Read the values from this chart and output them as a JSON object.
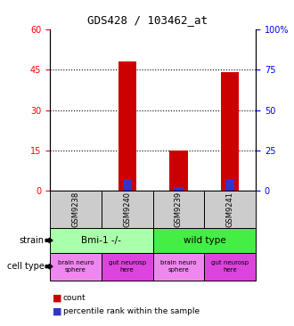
{
  "title": "GDS428 / 103462_at",
  "samples": [
    "GSM9238",
    "GSM9240",
    "GSM9239",
    "GSM9241"
  ],
  "count_values": [
    0,
    48,
    15,
    44
  ],
  "percentile_values": [
    0,
    7,
    2,
    7
  ],
  "ylim_left": [
    0,
    60
  ],
  "ylim_right": [
    0,
    100
  ],
  "yticks_left": [
    0,
    15,
    30,
    45,
    60
  ],
  "yticks_right": [
    0,
    25,
    50,
    75,
    100
  ],
  "ytick_labels_right": [
    "0",
    "25",
    "50",
    "75",
    "100%"
  ],
  "bar_color_red": "#cc0000",
  "bar_color_blue": "#3333cc",
  "grid_ticks": [
    15,
    30,
    45
  ],
  "strain_colors": [
    "#aaffaa",
    "#44ee44"
  ],
  "cell_type_colors_brain": "#ee88ee",
  "cell_type_colors_gut": "#dd44dd",
  "sample_box_color": "#cccccc",
  "legend_red_label": "count",
  "legend_blue_label": "percentile rank within the sample",
  "bar_width": 0.35,
  "blue_bar_width": 0.18
}
